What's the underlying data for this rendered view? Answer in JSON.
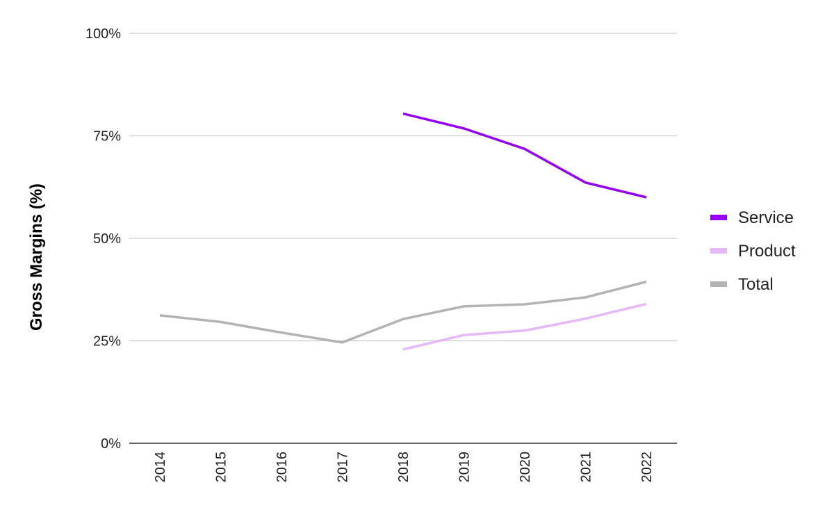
{
  "chart_data": {
    "type": "line",
    "title": "",
    "xlabel": "",
    "ylabel": "Gross Margins (%)",
    "ylim": [
      0,
      100
    ],
    "yticks": [
      0,
      25,
      50,
      75,
      100
    ],
    "ytick_labels": [
      "0%",
      "25%",
      "50%",
      "75%",
      "100%"
    ],
    "x": [
      "2014",
      "2015",
      "2016",
      "2017",
      "2018",
      "2019",
      "2020",
      "2021",
      "2022"
    ],
    "grid": true,
    "legend_position": "right",
    "series": [
      {
        "name": "Service",
        "color": "#9400f5",
        "values": [
          null,
          null,
          null,
          null,
          80.4,
          76.8,
          71.8,
          63.6,
          60.0
        ]
      },
      {
        "name": "Product",
        "color": "#e6b8f7",
        "values": [
          null,
          null,
          null,
          null,
          22.9,
          26.4,
          27.5,
          30.4,
          34.0
        ]
      },
      {
        "name": "Total",
        "color": "#b3b3b3",
        "values": [
          31.2,
          29.6,
          27.0,
          24.6,
          30.3,
          33.4,
          33.9,
          35.6,
          39.4
        ]
      }
    ]
  }
}
